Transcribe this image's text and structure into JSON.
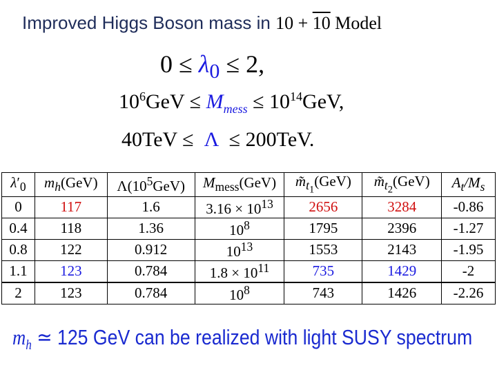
{
  "header": {
    "title": "Improved Higgs Boson mass in",
    "title_math": [
      "10 + ",
      "10",
      " Model"
    ]
  },
  "constraints": [
    [
      "0 ≤",
      "λ",
      "0",
      "≤ 2,"
    ],
    [
      "10",
      "6",
      "GeV ≤",
      "M",
      "mess",
      "≤ 10",
      "14",
      "GeV,"
    ],
    [
      "40TeV ≤",
      "Λ",
      "≤ 200TeV."
    ]
  ],
  "table": {
    "headers": [
      [
        "λ",
        "′",
        "0"
      ],
      [
        "m",
        "h",
        "(GeV)"
      ],
      [
        "Λ(10",
        "5",
        "GeV)"
      ],
      [
        "M",
        "mess",
        "(GeV)"
      ],
      [
        "m̃",
        "t",
        "1",
        "(GeV)"
      ],
      [
        "m̃",
        "t",
        "2",
        "(GeV)"
      ],
      [
        "A",
        "t",
        "/M",
        "s"
      ]
    ],
    "rows": [
      [
        "0",
        "117",
        "1.6",
        {
          "base": "3.16 × 10",
          "exp": "13"
        },
        "2656",
        "3284",
        "-0.86"
      ],
      [
        "0.4",
        "118",
        "1.36",
        {
          "base": "10",
          "exp": "8"
        },
        "1795",
        "2396",
        "-1.27"
      ],
      [
        "0.8",
        "122",
        "0.912",
        {
          "base": "10",
          "exp": "13"
        },
        "1553",
        "2143",
        "-1.95"
      ],
      [
        "1.1",
        "123",
        "0.784",
        {
          "base": "1.8 × 10",
          "exp": "11"
        },
        "735",
        "1429",
        "-2"
      ],
      [
        "2",
        "123",
        "0.784",
        {
          "base": "10",
          "exp": "8"
        },
        "743",
        "1426",
        "-2.26"
      ]
    ]
  },
  "footer": [
    "m",
    "h",
    "≃ 125 GeV can be realized with light SUSY spectrum"
  ]
}
